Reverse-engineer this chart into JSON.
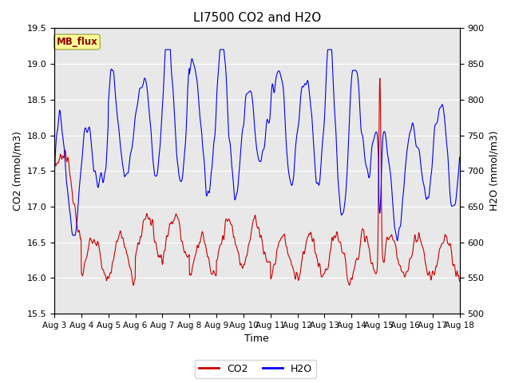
{
  "title": "LI7500 CO2 and H2O",
  "xlabel": "Time",
  "ylabel_left": "CO2 (mmol/m3)",
  "ylabel_right": "H2O (mmol/m3)",
  "ylim_left": [
    15.5,
    19.5
  ],
  "ylim_right": [
    500,
    900
  ],
  "xtick_labels": [
    "Aug 3",
    "Aug 4",
    "Aug 5",
    "Aug 6",
    "Aug 7",
    "Aug 8",
    "Aug 9",
    "Aug 10",
    "Aug 11",
    "Aug 12",
    "Aug 13",
    "Aug 14",
    "Aug 15",
    "Aug 16",
    "Aug 17",
    "Aug 18"
  ],
  "co2_color": "#CC0000",
  "h2o_color": "#0000EE",
  "bg_color": "#E8E8E8",
  "label_box_facecolor": "#FFFF99",
  "label_box_edgecolor": "#AAAA44",
  "label_box_text": "MB_flux",
  "label_box_text_color": "#8B0000",
  "legend_co2": "CO2",
  "legend_h2o": "H2O",
  "yticks_left": [
    15.5,
    16.0,
    16.5,
    17.0,
    17.5,
    18.0,
    18.5,
    19.0,
    19.5
  ],
  "yticks_right": [
    500,
    550,
    600,
    650,
    700,
    750,
    800,
    850,
    900
  ],
  "grid_color": "white",
  "title_fontsize": 11,
  "axis_label_fontsize": 9,
  "tick_fontsize": 8,
  "xlabel_fontsize": 9
}
